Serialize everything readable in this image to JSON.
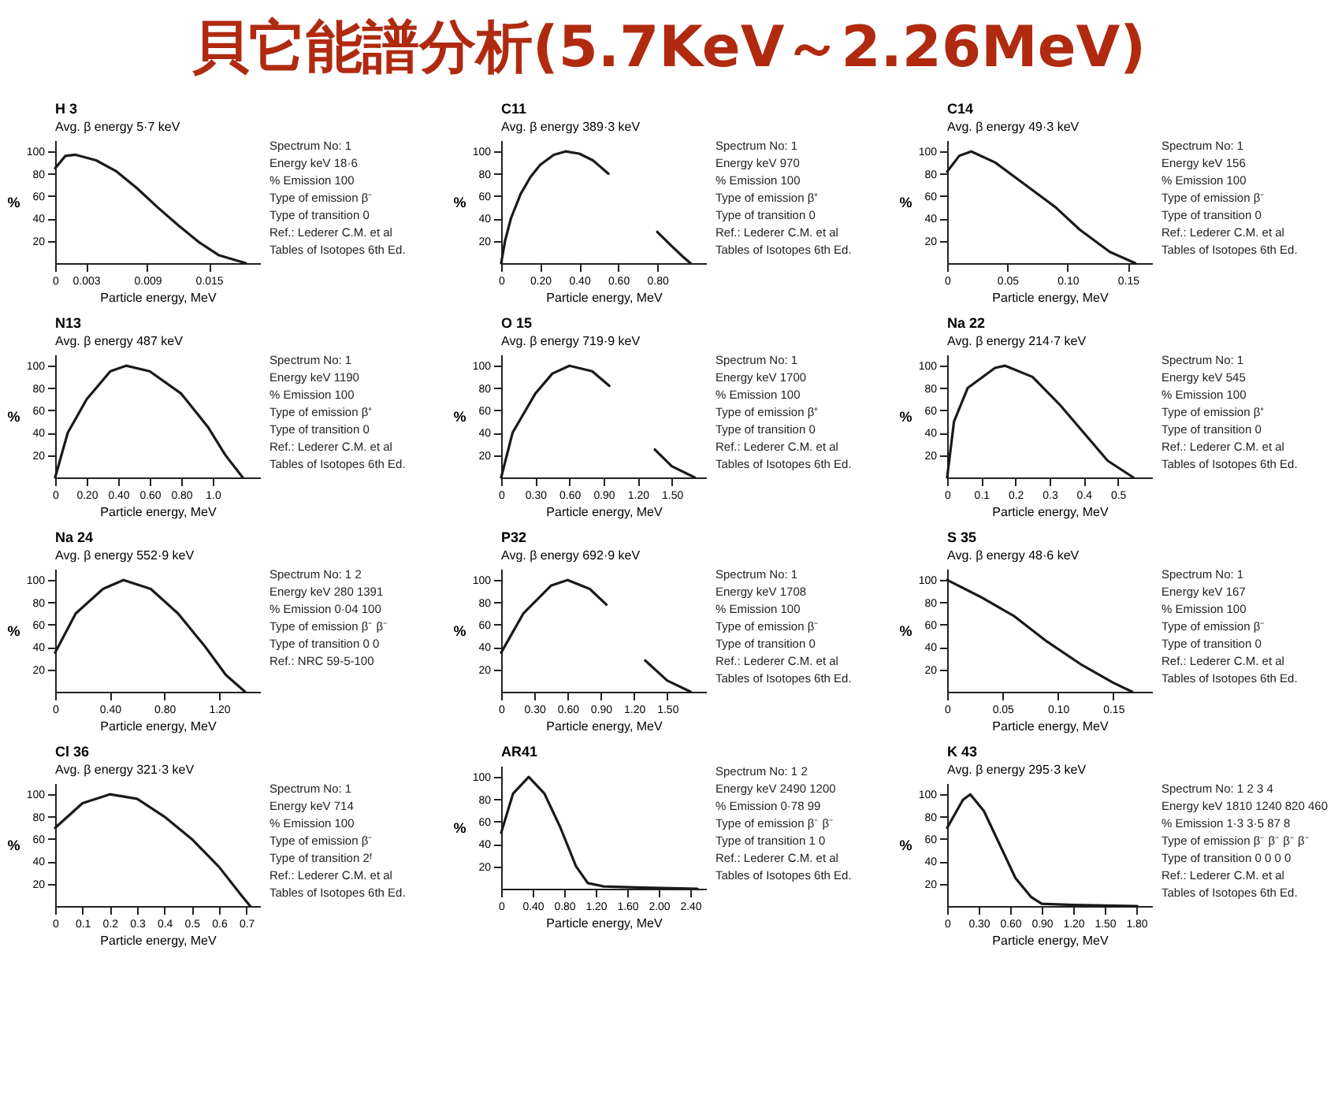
{
  "chart_data": [
    {
      "type": "other",
      "title": "貝它能譜分析(5.7KeV～2.26MeV)"
    },
    {
      "type": "line",
      "title": "H 3",
      "subtitle": "Avg. β energy 5·7 keV",
      "xlabel": "Particle energy, MeV",
      "ylabel": "%",
      "color": "#1a1a1a",
      "x": [
        0,
        0.001,
        0.002,
        0.004,
        0.006,
        0.008,
        0.01,
        0.012,
        0.014,
        0.016,
        0.0186
      ],
      "values": [
        85,
        96,
        97,
        92,
        82,
        67,
        50,
        34,
        19,
        7,
        0
      ],
      "xlim": [
        0,
        0.02
      ],
      "xticks": [
        0,
        0.003,
        0.009,
        0.015
      ],
      "ylim": [
        0,
        110
      ],
      "yticks": [
        20,
        40,
        60,
        80,
        100
      ],
      "annotations": [
        "Spectrum No: 1",
        "Energy keV 18·6",
        "% Emission 100",
        "Type of emission β⁻",
        "Type of transition 0",
        "Ref.: Lederer C.M. et al",
        "Tables of Isotopes 6th Ed."
      ]
    },
    {
      "type": "line",
      "title": "C11",
      "subtitle": "Avg. β energy 389·3 keV",
      "xlabel": "Particle energy, MeV",
      "ylabel": "%",
      "color": "#1a1a1a",
      "x": [
        0,
        0.02,
        0.05,
        0.1,
        0.15,
        0.2,
        0.27,
        0.33,
        0.4,
        0.47,
        0.55,
        0.68,
        0.8,
        0.87,
        0.93,
        0.97
      ],
      "values": [
        0,
        20,
        40,
        62,
        77,
        88,
        97,
        100,
        98,
        92,
        80,
        null,
        28,
        16,
        6,
        0
      ],
      "xlim": [
        0,
        1.05
      ],
      "xticks": [
        0,
        {
          "value": 0.2,
          "label": "0.20"
        },
        {
          "value": 0.4,
          "label": "0.40"
        },
        {
          "value": 0.6,
          "label": "0.60"
        },
        {
          "value": 0.8,
          "label": "0.80"
        }
      ],
      "ylim": [
        0,
        110
      ],
      "yticks": [
        20,
        40,
        60,
        80,
        100
      ],
      "annotations": [
        "Spectrum No: 1",
        "Energy keV 970",
        "% Emission 100",
        "Type of emission β⁺",
        "Type of transition 0",
        "Ref.: Lederer C.M. et al",
        "Tables of Isotopes 6th Ed."
      ]
    },
    {
      "type": "line",
      "title": "C14",
      "subtitle": "Avg. β energy 49·3 keV",
      "xlabel": "Particle energy, MeV",
      "ylabel": "%",
      "color": "#1a1a1a",
      "x": [
        0,
        0.01,
        0.02,
        0.04,
        0.065,
        0.09,
        0.11,
        0.135,
        0.156
      ],
      "values": [
        82,
        96,
        100,
        90,
        70,
        50,
        30,
        10,
        0
      ],
      "xlim": [
        0,
        0.17
      ],
      "xticks": [
        0,
        0.05,
        {
          "value": 0.1,
          "label": "0.10"
        },
        0.15
      ],
      "ylim": [
        0,
        110
      ],
      "yticks": [
        20,
        40,
        60,
        80,
        100
      ],
      "annotations": [
        "Spectrum No: 1",
        "Energy keV 156",
        "% Emission 100",
        "Type of emission β⁻",
        "Type of transition 0",
        "Ref.: Lederer C.M. et al",
        "Tables of Isotopes 6th Ed."
      ]
    },
    {
      "type": "line",
      "title": "N13",
      "subtitle": "Avg. β energy 487 keV",
      "xlabel": "Particle energy, MeV",
      "ylabel": "%",
      "color": "#1a1a1a",
      "x": [
        0,
        0.08,
        0.2,
        0.35,
        0.45,
        0.6,
        0.8,
        0.97,
        1.08,
        1.19
      ],
      "values": [
        0,
        40,
        70,
        95,
        100,
        95,
        75,
        45,
        20,
        0
      ],
      "xlim": [
        0,
        1.3
      ],
      "xticks": [
        0,
        {
          "value": 0.2,
          "label": "0.20"
        },
        {
          "value": 0.4,
          "label": "0.40"
        },
        {
          "value": 0.6,
          "label": "0.60"
        },
        {
          "value": 0.8,
          "label": "0.80"
        },
        {
          "value": 1.0,
          "label": "1.0"
        }
      ],
      "ylim": [
        0,
        110
      ],
      "yticks": [
        20,
        40,
        60,
        80,
        100
      ],
      "annotations": [
        "Spectrum No: 1",
        "Energy keV 1190",
        "% Emission 100",
        "Type of emission β⁺",
        "Type of transition 0",
        "Ref.: Lederer C.M. et al",
        "Tables of Isotopes 6th Ed."
      ]
    },
    {
      "type": "line",
      "title": "O 15",
      "subtitle": "Avg. β energy 719·9 keV",
      "xlabel": "Particle energy, MeV",
      "ylabel": "%",
      "color": "#1a1a1a",
      "x": [
        0,
        0.1,
        0.3,
        0.45,
        0.6,
        0.8,
        0.95,
        1.15,
        1.35,
        1.5,
        1.7
      ],
      "values": [
        0,
        40,
        75,
        93,
        100,
        95,
        82,
        null,
        25,
        10,
        0
      ],
      "xlim": [
        0,
        1.8
      ],
      "xticks": [
        0,
        {
          "value": 0.3,
          "label": "0.30"
        },
        {
          "value": 0.6,
          "label": "0.60"
        },
        {
          "value": 0.9,
          "label": "0.90"
        },
        {
          "value": 1.2,
          "label": "1.20"
        },
        {
          "value": 1.5,
          "label": "1.50"
        }
      ],
      "ylim": [
        0,
        110
      ],
      "yticks": [
        20,
        40,
        60,
        80,
        100
      ],
      "annotations": [
        "Spectrum No: 1",
        "Energy keV 1700",
        "% Emission 100",
        "Type of emission β⁺",
        "Type of transition 0",
        "Ref.: Lederer C.M. et al",
        "Tables of Isotopes 6th Ed."
      ]
    },
    {
      "type": "line",
      "title": "Na 22",
      "subtitle": "Avg. β energy 214·7 keV",
      "xlabel": "Particle energy, MeV",
      "ylabel": "%",
      "color": "#1a1a1a",
      "x": [
        0,
        0.02,
        0.06,
        0.14,
        0.17,
        0.25,
        0.33,
        0.4,
        0.47,
        0.545
      ],
      "values": [
        0,
        50,
        80,
        98,
        100,
        90,
        65,
        40,
        15,
        0
      ],
      "xlim": [
        0,
        0.6
      ],
      "xticks": [
        0,
        0.1,
        0.2,
        0.3,
        0.4,
        0.5
      ],
      "ylim": [
        0,
        110
      ],
      "yticks": [
        20,
        40,
        60,
        80,
        100
      ],
      "annotations": [
        "Spectrum No: 1",
        "Energy keV 545",
        "% Emission 100",
        "Type of emission β⁺",
        "Type of transition 0",
        "Ref.: Lederer C.M. et al",
        "Tables of Isotopes 6th Ed."
      ]
    },
    {
      "type": "line",
      "title": "Na 24",
      "subtitle": "Avg. β energy 552·9 keV",
      "xlabel": "Particle energy, MeV",
      "ylabel": "%",
      "color": "#1a1a1a",
      "x": [
        0,
        0.15,
        0.35,
        0.5,
        0.7,
        0.9,
        1.1,
        1.25,
        1.39
      ],
      "values": [
        35,
        70,
        92,
        100,
        92,
        70,
        40,
        15,
        0
      ],
      "xlim": [
        0,
        1.5
      ],
      "xticks": [
        0,
        {
          "value": 0.4,
          "label": "0.40"
        },
        {
          "value": 0.8,
          "label": "0.80"
        },
        {
          "value": 1.2,
          "label": "1.20"
        }
      ],
      "ylim": [
        0,
        110
      ],
      "yticks": [
        20,
        40,
        60,
        80,
        100
      ],
      "annotations": [
        "Spectrum No: 1 2",
        "Energy keV 280 1391",
        "% Emission 0·04 100",
        "Type of emission β⁻ β⁻",
        "Type of transition 0 0",
        "Ref.: NRC 59-5-100"
      ]
    },
    {
      "type": "line",
      "title": "P32",
      "subtitle": "Avg. β energy 692·9 keV",
      "xlabel": "Particle energy, MeV",
      "ylabel": "%",
      "color": "#1a1a1a",
      "x": [
        0,
        0.2,
        0.45,
        0.6,
        0.8,
        0.95,
        1.12,
        1.3,
        1.5,
        1.71
      ],
      "values": [
        35,
        70,
        95,
        100,
        92,
        78,
        null,
        28,
        10,
        0
      ],
      "xlim": [
        0,
        1.85
      ],
      "xticks": [
        0,
        {
          "value": 0.3,
          "label": "0.30"
        },
        {
          "value": 0.6,
          "label": "0.60"
        },
        {
          "value": 0.9,
          "label": "0.90"
        },
        {
          "value": 1.2,
          "label": "1.20"
        },
        {
          "value": 1.5,
          "label": "1.50"
        }
      ],
      "ylim": [
        0,
        110
      ],
      "yticks": [
        20,
        40,
        60,
        80,
        100
      ],
      "annotations": [
        "Spectrum No: 1",
        "Energy keV 1708",
        "% Emission 100",
        "Type of emission β⁻",
        "Type of transition 0",
        "Ref.: Lederer C.M. et al",
        "Tables of Isotopes 6th Ed."
      ]
    },
    {
      "type": "line",
      "title": "S 35",
      "subtitle": "Avg. β energy 48·6 keV",
      "xlabel": "Particle energy, MeV",
      "ylabel": "%",
      "color": "#1a1a1a",
      "x": [
        0,
        0.03,
        0.06,
        0.09,
        0.12,
        0.15,
        0.167
      ],
      "values": [
        100,
        85,
        68,
        45,
        25,
        8,
        0
      ],
      "xlim": [
        0,
        0.185
      ],
      "xticks": [
        0,
        0.05,
        {
          "value": 0.1,
          "label": "0.10"
        },
        0.15
      ],
      "ylim": [
        0,
        110
      ],
      "yticks": [
        20,
        40,
        60,
        80,
        100
      ],
      "annotations": [
        "Spectrum No: 1",
        "Energy keV 167",
        "% Emission 100",
        "Type of emission β⁻",
        "Type of transition 0",
        "Ref.: Lederer C.M. et al",
        "Tables of Isotopes 6th Ed."
      ]
    },
    {
      "type": "line",
      "title": "Cl 36",
      "subtitle": "Avg. β energy 321·3 keV",
      "xlabel": "Particle energy, MeV",
      "ylabel": "%",
      "color": "#1a1a1a",
      "x": [
        0,
        0.1,
        0.2,
        0.3,
        0.4,
        0.5,
        0.6,
        0.68,
        0.714
      ],
      "values": [
        70,
        92,
        100,
        96,
        80,
        60,
        35,
        10,
        0
      ],
      "xlim": [
        0,
        0.75
      ],
      "xticks": [
        0,
        0.1,
        0.2,
        0.3,
        0.4,
        0.5,
        0.6,
        0.7
      ],
      "ylim": [
        0,
        110
      ],
      "yticks": [
        20,
        40,
        60,
        80,
        100
      ],
      "annotations": [
        "Spectrum No: 1",
        "Energy keV 714",
        "% Emission 100",
        "Type of emission β⁻",
        "Type of transition 2ᶠ",
        "Ref.: Lederer C.M. et al",
        "Tables of Isotopes 6th Ed."
      ]
    },
    {
      "type": "line",
      "title": "AR41",
      "xlabel": "Particle energy, MeV",
      "ylabel": "%",
      "color": "#1a1a1a",
      "x": [
        0,
        0.15,
        0.35,
        0.55,
        0.75,
        0.95,
        1.1,
        1.3,
        1.8,
        2.49
      ],
      "values": [
        50,
        85,
        100,
        85,
        55,
        20,
        5,
        2,
        1,
        0
      ],
      "xlim": [
        0,
        2.6
      ],
      "xticks": [
        0,
        {
          "value": 0.4,
          "label": "0.40"
        },
        {
          "value": 0.8,
          "label": "0.80"
        },
        {
          "value": 1.2,
          "label": "1.20"
        },
        {
          "value": 1.6,
          "label": "1.60"
        },
        {
          "value": 2.0,
          "label": "2.00"
        },
        {
          "value": 2.4,
          "label": "2.40"
        }
      ],
      "ylim": [
        0,
        110
      ],
      "yticks": [
        20,
        40,
        60,
        80,
        100
      ],
      "annotations": [
        "Spectrum No: 1 2",
        "Energy keV 2490 1200",
        "% Emission 0·78 99",
        "Type of emission β⁻ β⁻",
        "Type of transition 1 0",
        "Ref.: Lederer C.M. et al",
        "Tables of Isotopes 6th Ed."
      ]
    },
    {
      "type": "line",
      "title": "K 43",
      "subtitle": "Avg. β energy 295·3 keV",
      "xlabel": "Particle energy, MeV",
      "ylabel": "%",
      "color": "#1a1a1a",
      "x": [
        0,
        0.15,
        0.22,
        0.35,
        0.5,
        0.65,
        0.8,
        0.9,
        1.2,
        1.81
      ],
      "values": [
        70,
        95,
        100,
        85,
        55,
        25,
        8,
        2,
        1,
        0
      ],
      "xlim": [
        0,
        1.95
      ],
      "xticks": [
        0,
        {
          "value": 0.3,
          "label": "0.30"
        },
        {
          "value": 0.6,
          "label": "0.60"
        },
        {
          "value": 0.9,
          "label": "0.90"
        },
        {
          "value": 1.2,
          "label": "1.20"
        },
        {
          "value": 1.5,
          "label": "1.50"
        },
        {
          "value": 1.8,
          "label": "1.80"
        }
      ],
      "ylim": [
        0,
        110
      ],
      "yticks": [
        20,
        40,
        60,
        80,
        100
      ],
      "annotations": [
        "Spectrum No: 1 2 3 4",
        "Energy keV 1810 1240 820 460",
        "% Emission 1·3 3·5 87 8",
        "Type of emission β⁻ β⁻ β⁻ β⁻",
        "Type of transition 0 0 0 0",
        "Ref.: Lederer C.M. et al",
        "Tables of Isotopes 6th Ed."
      ]
    }
  ]
}
